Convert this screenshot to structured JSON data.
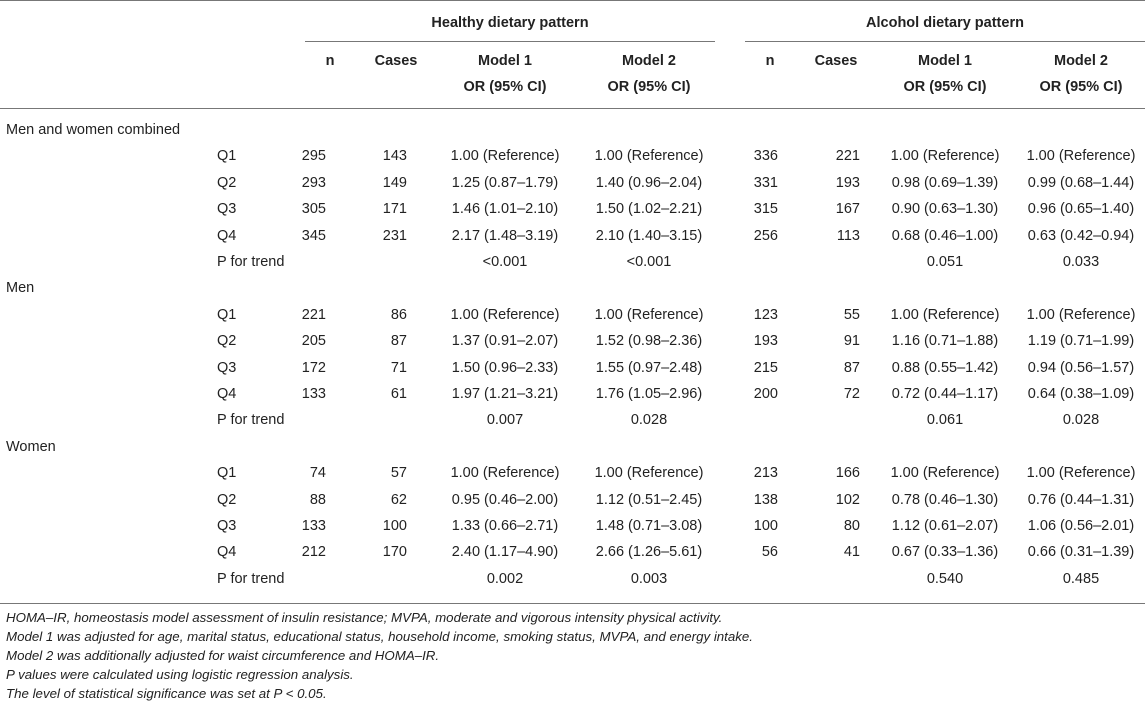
{
  "header": {
    "group1_title": "Healthy dietary pattern",
    "group2_title": "Alcohol dietary pattern",
    "col_n": "n",
    "col_cases": "Cases",
    "col_model1": "Model 1",
    "col_model2": "Model 2",
    "col_or": "OR (95% CI)"
  },
  "sections": [
    {
      "title": "Men and women combined",
      "rows": [
        {
          "label": "Q1",
          "h_n": "295",
          "h_cases": "143",
          "h_m1": "1.00 (Reference)",
          "h_m2": "1.00 (Reference)",
          "a_n": "336",
          "a_cases": "221",
          "a_m1": "1.00 (Reference)",
          "a_m2": "1.00 (Reference)"
        },
        {
          "label": "Q2",
          "h_n": "293",
          "h_cases": "149",
          "h_m1": "1.25 (0.87–1.79)",
          "h_m2": "1.40 (0.96–2.04)",
          "a_n": "331",
          "a_cases": "193",
          "a_m1": "0.98 (0.69–1.39)",
          "a_m2": "0.99 (0.68–1.44)"
        },
        {
          "label": "Q3",
          "h_n": "305",
          "h_cases": "171",
          "h_m1": "1.46 (1.01–2.10)",
          "h_m2": "1.50 (1.02–2.21)",
          "a_n": "315",
          "a_cases": "167",
          "a_m1": "0.90 (0.63–1.30)",
          "a_m2": "0.96 (0.65–1.40)"
        },
        {
          "label": "Q4",
          "h_n": "345",
          "h_cases": "231",
          "h_m1": "2.17 (1.48–3.19)",
          "h_m2": "2.10 (1.40–3.15)",
          "a_n": "256",
          "a_cases": "113",
          "a_m1": "0.68 (0.46–1.00)",
          "a_m2": "0.63 (0.42–0.94)"
        },
        {
          "label": "P for trend",
          "h_n": "",
          "h_cases": "",
          "h_m1": "<0.001",
          "h_m2": "<0.001",
          "a_n": "",
          "a_cases": "",
          "a_m1": "0.051",
          "a_m2": "0.033"
        }
      ]
    },
    {
      "title": "Men",
      "rows": [
        {
          "label": "Q1",
          "h_n": "221",
          "h_cases": "86",
          "h_m1": "1.00 (Reference)",
          "h_m2": "1.00 (Reference)",
          "a_n": "123",
          "a_cases": "55",
          "a_m1": "1.00 (Reference)",
          "a_m2": "1.00 (Reference)"
        },
        {
          "label": "Q2",
          "h_n": "205",
          "h_cases": "87",
          "h_m1": "1.37 (0.91–2.07)",
          "h_m2": "1.52 (0.98–2.36)",
          "a_n": "193",
          "a_cases": "91",
          "a_m1": "1.16 (0.71–1.88)",
          "a_m2": "1.19 (0.71–1.99)"
        },
        {
          "label": "Q3",
          "h_n": "172",
          "h_cases": "71",
          "h_m1": "1.50 (0.96–2.33)",
          "h_m2": "1.55 (0.97–2.48)",
          "a_n": "215",
          "a_cases": "87",
          "a_m1": "0.88 (0.55–1.42)",
          "a_m2": "0.94 (0.56–1.57)"
        },
        {
          "label": "Q4",
          "h_n": "133",
          "h_cases": "61",
          "h_m1": "1.97 (1.21–3.21)",
          "h_m2": "1.76 (1.05–2.96)",
          "a_n": "200",
          "a_cases": "72",
          "a_m1": "0.72 (0.44–1.17)",
          "a_m2": "0.64 (0.38–1.09)"
        },
        {
          "label": "P for trend",
          "h_n": "",
          "h_cases": "",
          "h_m1": "0.007",
          "h_m2": "0.028",
          "a_n": "",
          "a_cases": "",
          "a_m1": "0.061",
          "a_m2": "0.028"
        }
      ]
    },
    {
      "title": "Women",
      "rows": [
        {
          "label": "Q1",
          "h_n": "74",
          "h_cases": "57",
          "h_m1": "1.00 (Reference)",
          "h_m2": "1.00 (Reference)",
          "a_n": "213",
          "a_cases": "166",
          "a_m1": "1.00 (Reference)",
          "a_m2": "1.00 (Reference)"
        },
        {
          "label": "Q2",
          "h_n": "88",
          "h_cases": "62",
          "h_m1": "0.95 (0.46–2.00)",
          "h_m2": "1.12 (0.51–2.45)",
          "a_n": "138",
          "a_cases": "102",
          "a_m1": "0.78 (0.46–1.30)",
          "a_m2": "0.76 (0.44–1.31)"
        },
        {
          "label": "Q3",
          "h_n": "133",
          "h_cases": "100",
          "h_m1": "1.33 (0.66–2.71)",
          "h_m2": "1.48 (0.71–3.08)",
          "a_n": "100",
          "a_cases": "80",
          "a_m1": "1.12 (0.61–2.07)",
          "a_m2": "1.06 (0.56–2.01)"
        },
        {
          "label": "Q4",
          "h_n": "212",
          "h_cases": "170",
          "h_m1": "2.40 (1.17–4.90)",
          "h_m2": "2.66 (1.26–5.61)",
          "a_n": "56",
          "a_cases": "41",
          "a_m1": "0.67 (0.33–1.36)",
          "a_m2": "0.66 (0.31–1.39)"
        },
        {
          "label": "P for trend",
          "h_n": "",
          "h_cases": "",
          "h_m1": "0.002",
          "h_m2": "0.003",
          "a_n": "",
          "a_cases": "",
          "a_m1": "0.540",
          "a_m2": "0.485"
        }
      ]
    }
  ],
  "footnotes": [
    "HOMA–IR, homeostasis model assessment of insulin resistance; MVPA, moderate and vigorous intensity physical activity.",
    "Model 1 was adjusted for age, marital status, educational status, household income, smoking status, MVPA, and energy intake.",
    "Model 2 was additionally adjusted for waist circumference and HOMA–IR.",
    "P values were calculated using logistic regression analysis.",
    "The level of statistical significance was set at P < 0.05."
  ]
}
